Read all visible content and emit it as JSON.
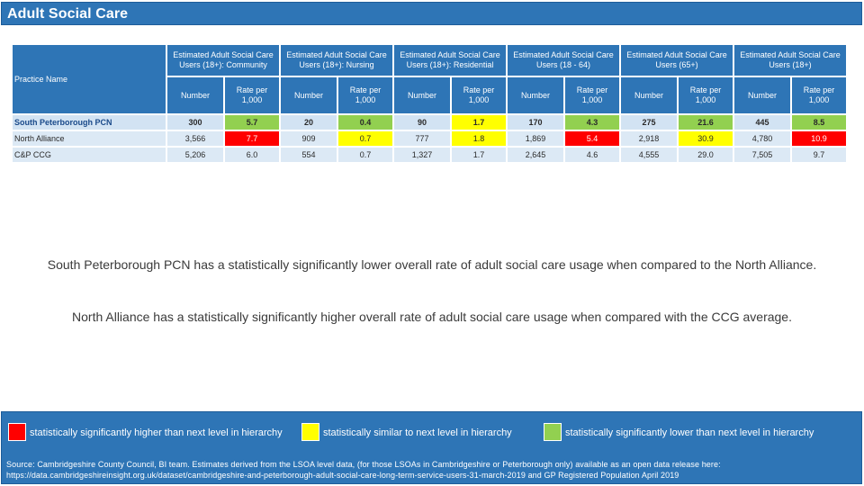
{
  "title": "Adult Social Care",
  "table": {
    "practice_header": "Practice Name",
    "groups": [
      {
        "label": "Estimated Adult Social Care Users (18+): Community",
        "sub": [
          "Number",
          "Rate per 1,000"
        ]
      },
      {
        "label": "Estimated Adult Social Care Users (18+): Nursing",
        "sub": [
          "Number",
          "Rate per 1,000"
        ]
      },
      {
        "label": "Estimated Adult Social Care Users (18+): Residential",
        "sub": [
          "Number",
          "Rate per 1,000"
        ]
      },
      {
        "label": "Estimated Adult Social Care Users (18 - 64)",
        "sub": [
          "Number",
          "Rate per 1,000"
        ]
      },
      {
        "label": "Estimated Adult Social Care Users (65+)",
        "sub": [
          "Number",
          "Rate per 1,000"
        ]
      },
      {
        "label": "Estimated Adult Social Care Users (18+)",
        "sub": [
          "Number",
          "Rate per 1,000"
        ]
      }
    ],
    "rows": [
      {
        "name": "South Peterborough PCN",
        "cells": [
          {
            "v": "300",
            "c": ""
          },
          {
            "v": "5.7",
            "c": "green"
          },
          {
            "v": "20",
            "c": ""
          },
          {
            "v": "0.4",
            "c": "green"
          },
          {
            "v": "90",
            "c": ""
          },
          {
            "v": "1.7",
            "c": "yellow"
          },
          {
            "v": "170",
            "c": ""
          },
          {
            "v": "4.3",
            "c": "green"
          },
          {
            "v": "275",
            "c": ""
          },
          {
            "v": "21.6",
            "c": "green"
          },
          {
            "v": "445",
            "c": ""
          },
          {
            "v": "8.5",
            "c": "green"
          }
        ]
      },
      {
        "name": "North Alliance",
        "cells": [
          {
            "v": "3,566",
            "c": ""
          },
          {
            "v": "7.7",
            "c": "red"
          },
          {
            "v": "909",
            "c": ""
          },
          {
            "v": "0.7",
            "c": "yellow"
          },
          {
            "v": "777",
            "c": ""
          },
          {
            "v": "1.8",
            "c": "yellow"
          },
          {
            "v": "1,869",
            "c": ""
          },
          {
            "v": "5.4",
            "c": "red"
          },
          {
            "v": "2,918",
            "c": ""
          },
          {
            "v": "30.9",
            "c": "yellow"
          },
          {
            "v": "4,780",
            "c": ""
          },
          {
            "v": "10.9",
            "c": "red"
          }
        ]
      },
      {
        "name": "C&P CCG",
        "cells": [
          {
            "v": "5,206",
            "c": ""
          },
          {
            "v": "6.0",
            "c": ""
          },
          {
            "v": "554",
            "c": ""
          },
          {
            "v": "0.7",
            "c": ""
          },
          {
            "v": "1,327",
            "c": ""
          },
          {
            "v": "1.7",
            "c": ""
          },
          {
            "v": "2,645",
            "c": ""
          },
          {
            "v": "4.6",
            "c": ""
          },
          {
            "v": "4,555",
            "c": ""
          },
          {
            "v": "29.0",
            "c": ""
          },
          {
            "v": "7,505",
            "c": ""
          },
          {
            "v": "9.7",
            "c": ""
          }
        ]
      }
    ]
  },
  "summary": [
    "South Peterborough PCN has a statistically significantly lower overall rate of adult social care usage when compared to the North Alliance.",
    "North Alliance has a statistically significantly higher overall rate of adult social care usage when compared with the CCG average."
  ],
  "legend": [
    {
      "color": "#ff0000",
      "label": "statistically significantly higher than next level in hierarchy"
    },
    {
      "color": "#ffff00",
      "label": "statistically similar to next level in hierarchy"
    },
    {
      "color": "#92d050",
      "label": "statistically significantly lower than next level in hierarchy"
    }
  ],
  "source": "Source: Cambridgeshire County Council, BI team. Estimates derived from the LSOA level data, (for those LSOAs in Cambridgeshire or Peterborough only) available as an open data release here: https://data.cambridgeshireinsight.org.uk/dataset/cambridgeshire-and-peterborough-adult-social-care-long-term-service-users-31-march-2019 and GP Registered Population April 2019"
}
